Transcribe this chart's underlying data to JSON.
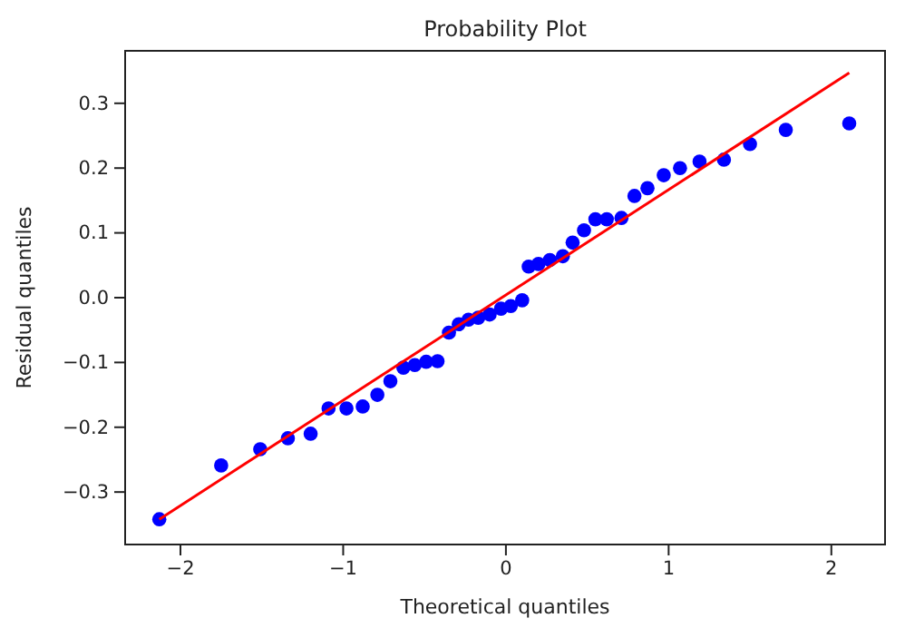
{
  "chart_data": {
    "type": "scatter",
    "title": "Probability Plot",
    "xlabel": "Theoretical quantiles",
    "ylabel": "Residual quantiles",
    "xlim": [
      -2.34,
      2.33
    ],
    "ylim": [
      -0.381,
      0.381
    ],
    "xticks": [
      {
        "value": -2,
        "label": "−2"
      },
      {
        "value": -1,
        "label": "−1"
      },
      0,
      1,
      2
    ],
    "yticks": [
      {
        "value": -0.3,
        "label": "−0.3"
      },
      {
        "value": -0.2,
        "label": "−0.2"
      },
      {
        "value": -0.1,
        "label": "−0.1"
      },
      {
        "value": 0,
        "label": "0.0"
      },
      0.1,
      0.2,
      0.3
    ],
    "grid": false,
    "series": [
      {
        "color": "#0000ff",
        "marker": "circle",
        "x": [
          -2.13,
          -1.75,
          -1.51,
          -1.34,
          -1.2,
          -1.09,
          -0.98,
          -0.88,
          -0.79,
          -0.71,
          -0.63,
          -0.56,
          -0.49,
          -0.42,
          -0.35,
          -0.29,
          -0.23,
          -0.17,
          -0.1,
          -0.03,
          0.03,
          0.1,
          0.14,
          0.2,
          0.27,
          0.35,
          0.41,
          0.48,
          0.55,
          0.62,
          0.71,
          0.79,
          0.87,
          0.97,
          1.07,
          1.19,
          1.34,
          1.5,
          1.72,
          2.11
        ],
        "values": [
          -0.342,
          -0.259,
          -0.234,
          -0.217,
          -0.21,
          -0.171,
          -0.171,
          -0.168,
          -0.15,
          -0.129,
          -0.108,
          -0.104,
          -0.099,
          -0.098,
          -0.054,
          -0.041,
          -0.034,
          -0.031,
          -0.026,
          -0.017,
          -0.013,
          -0.004,
          0.048,
          0.052,
          0.058,
          0.064,
          0.085,
          0.104,
          0.121,
          0.121,
          0.123,
          0.157,
          0.169,
          0.189,
          0.2,
          0.21,
          0.213,
          0.237,
          0.259,
          0.269
        ]
      },
      {
        "type": "line",
        "color": "#ff0000",
        "marker": "none",
        "line_style": "solid",
        "x": [
          -2.13,
          2.11
        ],
        "values": [
          -0.342,
          0.347
        ]
      }
    ]
  }
}
